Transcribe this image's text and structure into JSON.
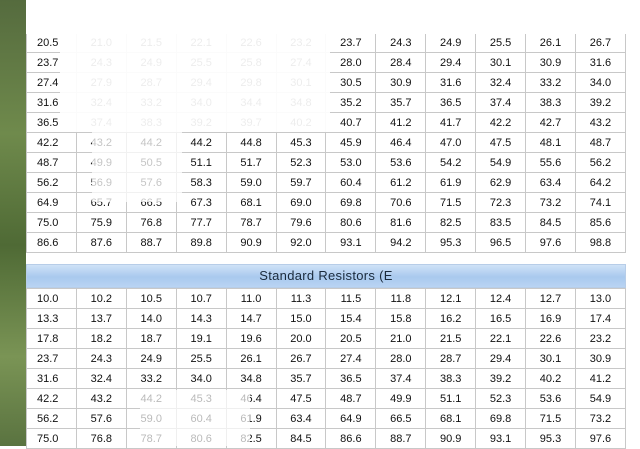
{
  "banner": {
    "title": "Standard Resistors (E"
  },
  "table1": {
    "rows": [
      [
        "20.5",
        "21.0",
        "21.5",
        "22.1",
        "22.6",
        "23.2",
        "23.7",
        "24.3",
        "24.9",
        "25.5",
        "26.1",
        "26.7"
      ],
      [
        "23.7",
        "24.3",
        "24.9",
        "25.5",
        "25.8",
        "27.4",
        "28.0",
        "28.4",
        "29.4",
        "30.1",
        "30.9",
        "31.6"
      ],
      [
        "27.4",
        "27.9",
        "28.7",
        "29.4",
        "29.8",
        "30.1",
        "30.5",
        "30.9",
        "31.6",
        "32.4",
        "33.2",
        "34.0"
      ],
      [
        "31.6",
        "32.4",
        "33.2",
        "34.0",
        "34.4",
        "34.8",
        "35.2",
        "35.7",
        "36.5",
        "37.4",
        "38.3",
        "39.2"
      ],
      [
        "36.5",
        "37.4",
        "38.3",
        "39.2",
        "39.7",
        "40.2",
        "40.7",
        "41.2",
        "41.7",
        "42.2",
        "42.7",
        "43.2"
      ],
      [
        "42.2",
        "43.2",
        "44.2",
        "44.2",
        "44.8",
        "45.3",
        "45.9",
        "46.4",
        "47.0",
        "47.5",
        "48.1",
        "48.7"
      ],
      [
        "48.7",
        "49.9",
        "50.5",
        "51.1",
        "51.7",
        "52.3",
        "53.0",
        "53.6",
        "54.2",
        "54.9",
        "55.6",
        "56.2"
      ],
      [
        "56.2",
        "56.9",
        "57.6",
        "58.3",
        "59.0",
        "59.7",
        "60.4",
        "61.2",
        "61.9",
        "62.9",
        "63.4",
        "64.2"
      ],
      [
        "64.9",
        "65.7",
        "66.5",
        "67.3",
        "68.1",
        "69.0",
        "69.8",
        "70.6",
        "71.5",
        "72.3",
        "73.2",
        "74.1"
      ],
      [
        "75.0",
        "75.9",
        "76.8",
        "77.7",
        "78.7",
        "79.6",
        "80.6",
        "81.6",
        "82.5",
        "83.5",
        "84.5",
        "85.6"
      ],
      [
        "86.6",
        "87.6",
        "88.7",
        "89.8",
        "90.9",
        "92.0",
        "93.1",
        "94.2",
        "95.3",
        "96.5",
        "97.6",
        "98.8"
      ]
    ]
  },
  "table2": {
    "rows": [
      [
        "10.0",
        "10.2",
        "10.5",
        "10.7",
        "11.0",
        "11.3",
        "11.5",
        "11.8",
        "12.1",
        "12.4",
        "12.7",
        "13.0"
      ],
      [
        "13.3",
        "13.7",
        "14.0",
        "14.3",
        "14.7",
        "15.0",
        "15.4",
        "15.8",
        "16.2",
        "16.5",
        "16.9",
        "17.4"
      ],
      [
        "17.8",
        "18.2",
        "18.7",
        "19.1",
        "19.6",
        "20.0",
        "20.5",
        "21.0",
        "21.5",
        "22.1",
        "22.6",
        "23.2"
      ],
      [
        "23.7",
        "24.3",
        "24.9",
        "25.5",
        "26.1",
        "26.7",
        "27.4",
        "28.0",
        "28.7",
        "29.4",
        "30.1",
        "30.9"
      ],
      [
        "31.6",
        "32.4",
        "33.2",
        "34.0",
        "34.8",
        "35.7",
        "36.5",
        "37.4",
        "38.3",
        "39.2",
        "40.2",
        "41.2"
      ],
      [
        "42.2",
        "43.2",
        "44.2",
        "45.3",
        "46.4",
        "47.5",
        "48.7",
        "49.9",
        "51.1",
        "52.3",
        "53.6",
        "54.9"
      ],
      [
        "56.2",
        "57.6",
        "59.0",
        "60.4",
        "61.9",
        "63.4",
        "64.9",
        "66.5",
        "68.1",
        "69.8",
        "71.5",
        "73.2"
      ],
      [
        "75.0",
        "76.8",
        "78.7",
        "80.6",
        "82.5",
        "84.5",
        "86.6",
        "88.7",
        "90.9",
        "93.1",
        "95.3",
        "97.6"
      ]
    ]
  }
}
